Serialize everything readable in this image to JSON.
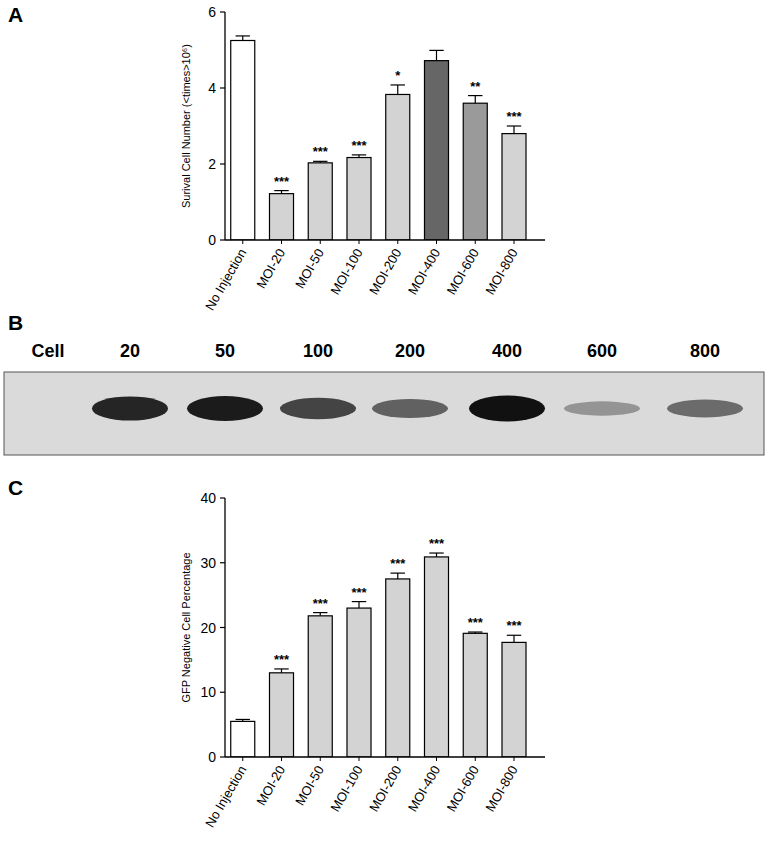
{
  "chart_data": [
    {
      "type": "bar",
      "title": "A",
      "y_label": "Surival Cell Number (<times>10⁶)",
      "categories": [
        "No Injection",
        "MOI-20",
        "MOI-50",
        "MOI-100",
        "MOI-200",
        "MOI-400",
        "MOI-600",
        "MOI-800"
      ],
      "values": [
        5.25,
        1.22,
        2.03,
        2.17,
        3.83,
        4.72,
        3.6,
        2.8
      ],
      "errors": [
        0.12,
        0.08,
        0.04,
        0.07,
        0.25,
        0.27,
        0.2,
        0.2
      ],
      "significance": [
        null,
        "***",
        "***",
        "***",
        "*",
        null,
        "**",
        "***"
      ],
      "colors": [
        "#ffffff",
        "#d3d3d3",
        "#d3d3d3",
        "#d3d3d3",
        "#d3d3d3",
        "#666666",
        "#9a9a9a",
        "#d3d3d3"
      ],
      "ylim": [
        0,
        6
      ],
      "yticks": [
        0,
        2,
        4,
        6
      ]
    },
    {
      "type": "blot",
      "title": "B",
      "categories": [
        "Cell",
        "20",
        "50",
        "100",
        "200",
        "400",
        "600",
        "800"
      ],
      "values": [
        0,
        0.9,
        0.95,
        0.75,
        0.6,
        1.0,
        0.35,
        0.55
      ]
    },
    {
      "type": "bar",
      "title": "C",
      "y_label": "GFP Negative Cell Percentage",
      "categories": [
        "No Injection",
        "MOI-20",
        "MOI-50",
        "MOI-100",
        "MOI-200",
        "MOI-400",
        "MOI-600",
        "MOI-800"
      ],
      "values": [
        5.5,
        13.0,
        21.8,
        23.0,
        27.5,
        30.9,
        19.1,
        17.7
      ],
      "errors": [
        0.3,
        0.6,
        0.5,
        1.0,
        0.9,
        0.6,
        0.2,
        1.1
      ],
      "significance": [
        null,
        "***",
        "***",
        "***",
        "***",
        "***",
        "***",
        "***"
      ],
      "colors": [
        "#ffffff",
        "#d3d3d3",
        "#d3d3d3",
        "#d3d3d3",
        "#d3d3d3",
        "#d3d3d3",
        "#d3d3d3",
        "#d3d3d3"
      ],
      "ylim": [
        0,
        40
      ],
      "yticks": [
        0,
        10,
        20,
        30,
        40
      ]
    }
  ]
}
